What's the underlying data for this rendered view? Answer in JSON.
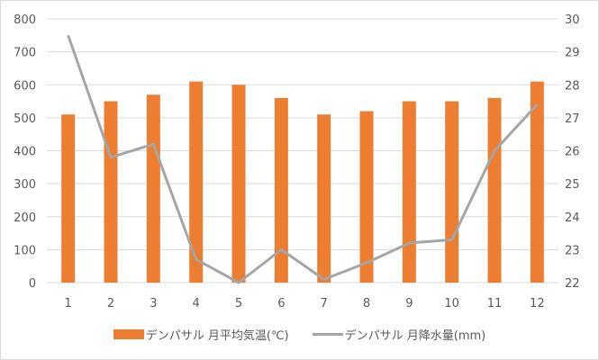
{
  "chart_data": {
    "type": "bar+line",
    "title": "",
    "categories": [
      "1",
      "2",
      "3",
      "4",
      "5",
      "6",
      "7",
      "8",
      "9",
      "10",
      "11",
      "12"
    ],
    "series": [
      {
        "name": "デンパサル 月平均気温(℃)",
        "type": "bar",
        "color": "#ED7D31",
        "axis": "left",
        "values": [
          510,
          550,
          570,
          610,
          600,
          560,
          510,
          520,
          550,
          550,
          560,
          610
        ]
      },
      {
        "name": "デンパサル 月降水量(mm)",
        "type": "line",
        "color": "#A5A5A5",
        "axis": "right",
        "values": [
          29.5,
          25.8,
          26.2,
          22.7,
          22.0,
          23.0,
          22.1,
          22.6,
          23.2,
          23.3,
          26.0,
          27.4
        ]
      }
    ],
    "left_axis": {
      "ylim": [
        0,
        800
      ],
      "ticks": [
        "0",
        "100",
        "200",
        "300",
        "400",
        "500",
        "600",
        "700",
        "800"
      ]
    },
    "right_axis": {
      "ylim": [
        22,
        30
      ],
      "ticks": [
        "22",
        "23",
        "24",
        "25",
        "26",
        "27",
        "28",
        "29",
        "30"
      ]
    },
    "xlabel": "",
    "ylabel": "",
    "grid": true,
    "legend_position": "bottom"
  },
  "legend": {
    "bar_label": "デンパサル 月平均気温(℃)",
    "line_label": "デンパサル 月降水量(mm)"
  }
}
